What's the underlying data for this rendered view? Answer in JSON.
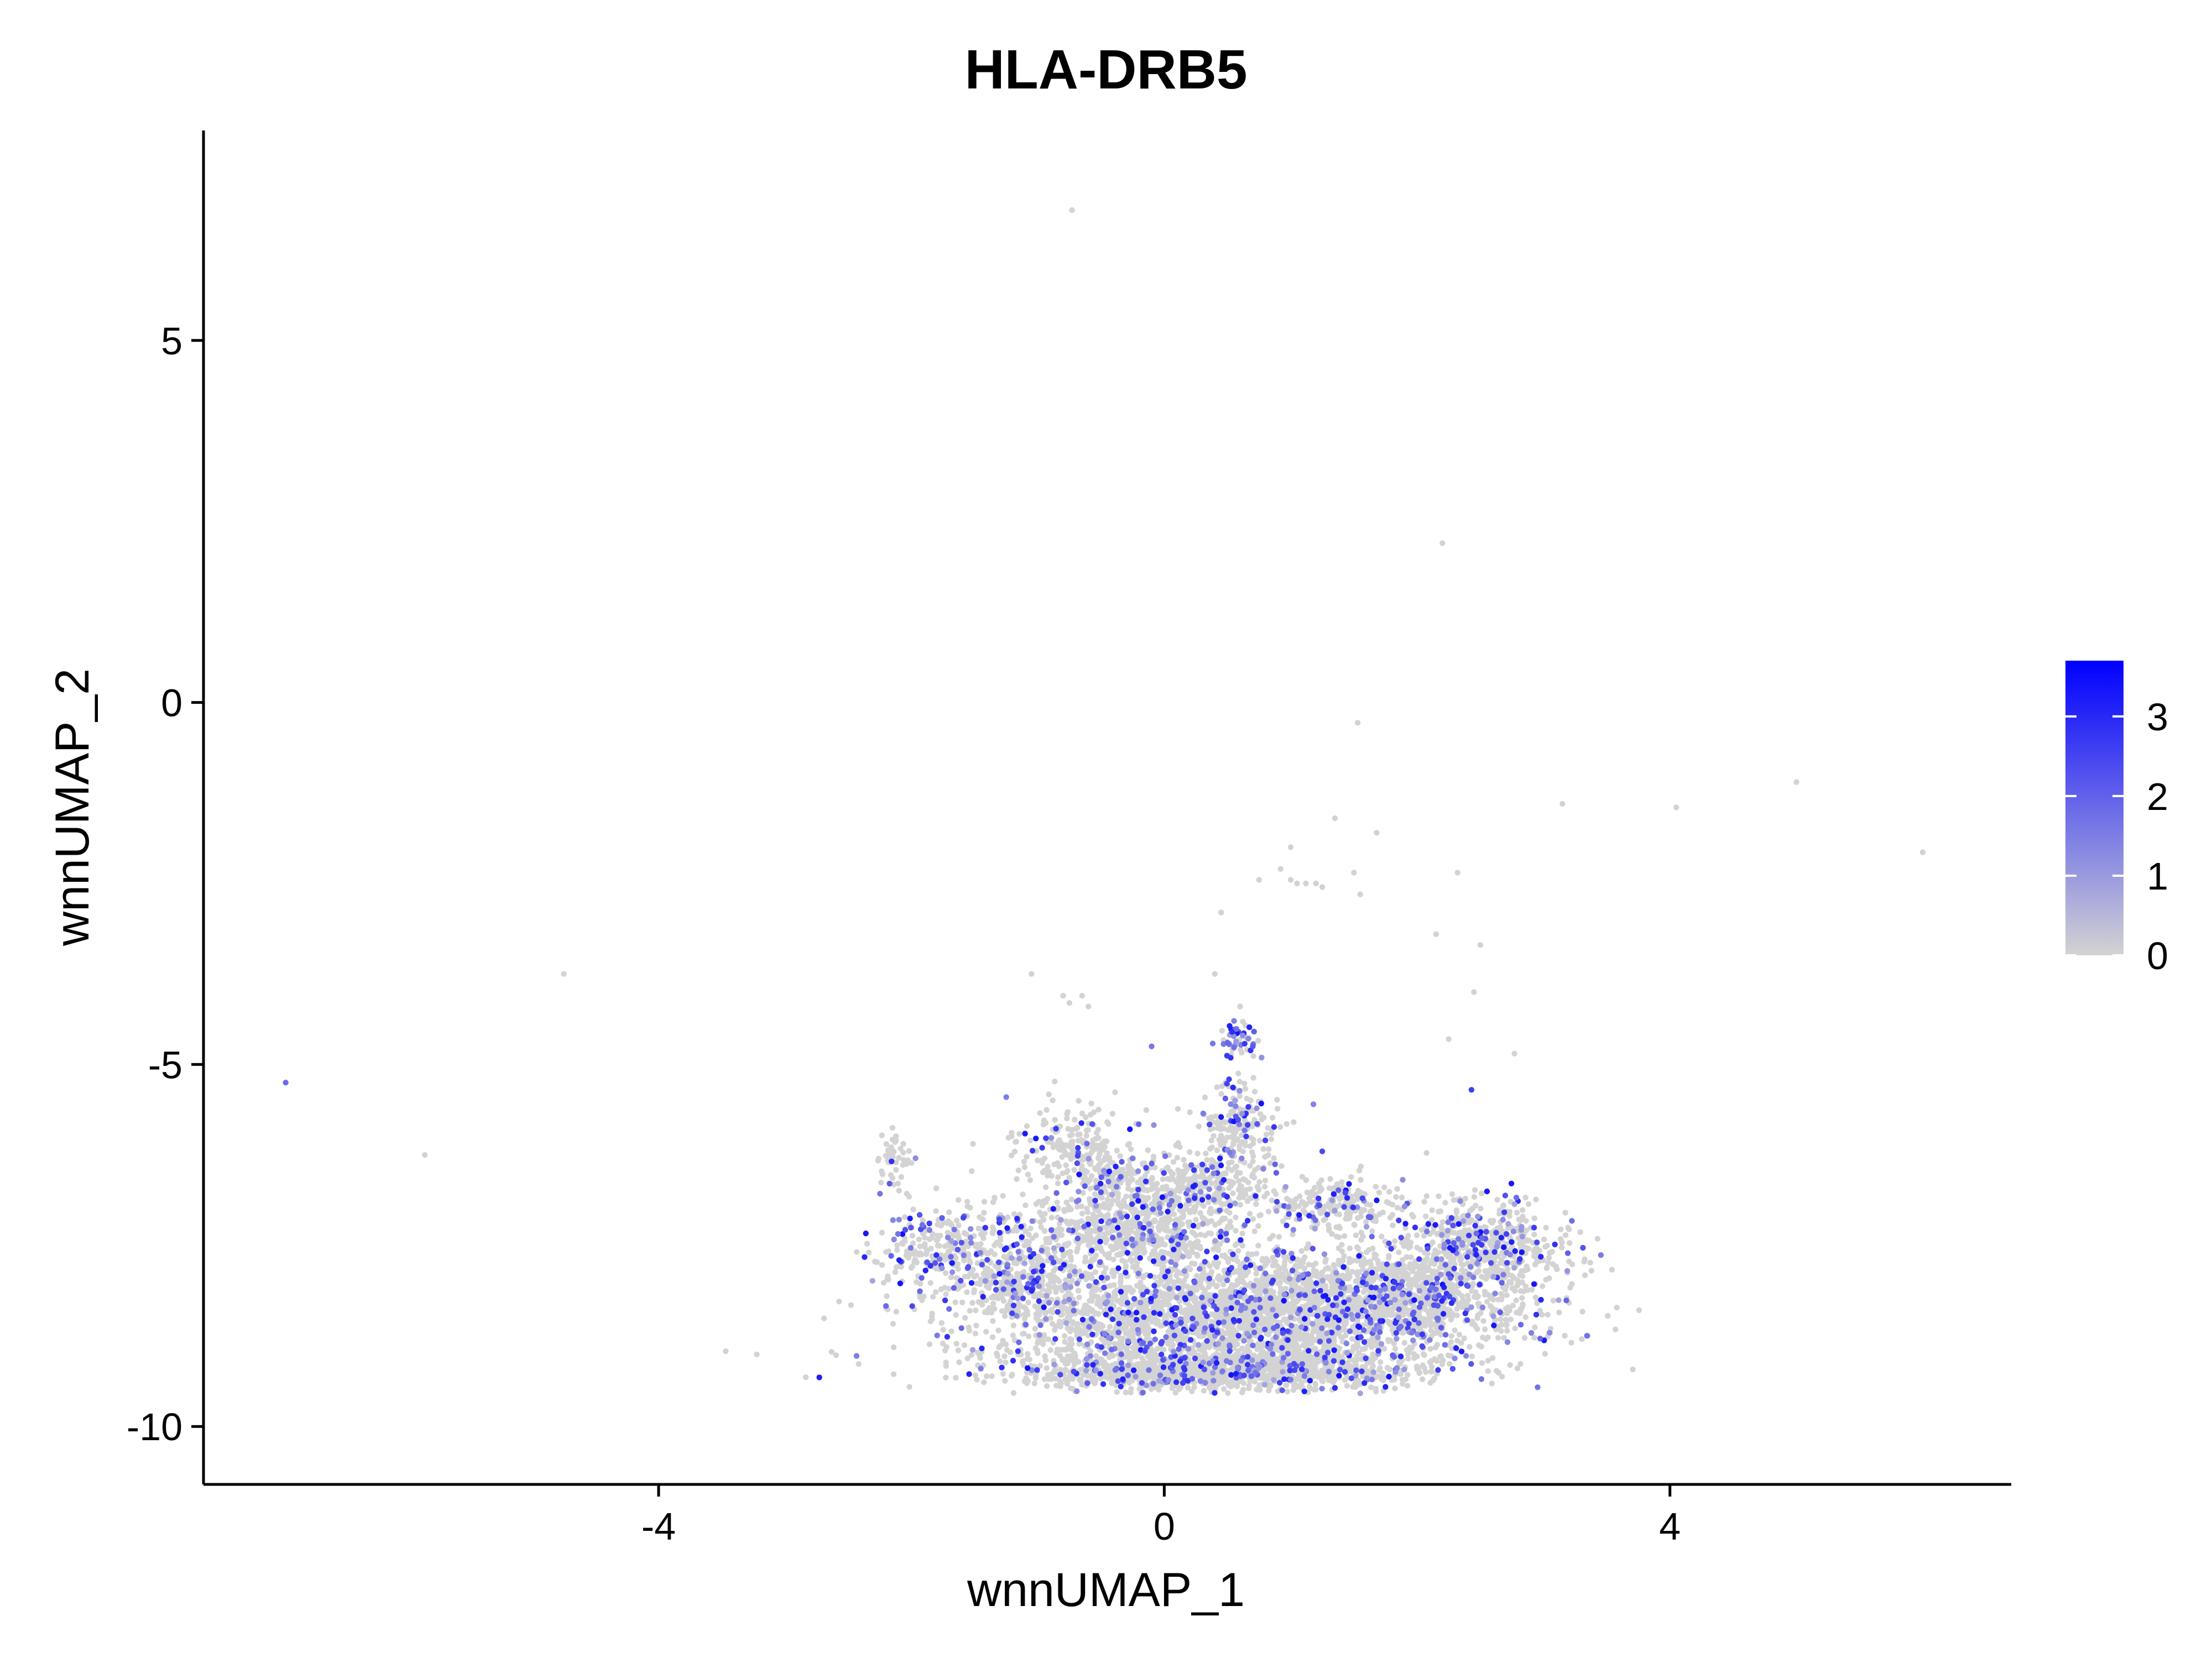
{
  "chart_data": {
    "type": "scatter",
    "title": "HLA-DRB5",
    "xlabel": "wnnUMAP_1",
    "ylabel": "wnnUMAP_2",
    "xlim": [
      -7.6,
      6.7
    ],
    "ylim": [
      -10.8,
      7.9
    ],
    "x_ticks": [
      {
        "value": -4,
        "label": "-4"
      },
      {
        "value": 0,
        "label": "0"
      },
      {
        "value": 4,
        "label": "4"
      }
    ],
    "y_ticks": [
      {
        "value": 5,
        "label": "5"
      },
      {
        "value": 0,
        "label": "0"
      },
      {
        "value": -5,
        "label": "-5"
      },
      {
        "value": -10,
        "label": "-10"
      }
    ],
    "grid": false,
    "color_scale": {
      "name": "",
      "low_color": "#d3d3d3",
      "high_color": "#0000ff",
      "min": 0,
      "max": 3.7,
      "ticks": [
        {
          "value": 0,
          "label": "0"
        },
        {
          "value": 1,
          "label": "1"
        },
        {
          "value": 2,
          "label": "2"
        },
        {
          "value": 3,
          "label": "3"
        }
      ],
      "legend_position": "right"
    },
    "points": [
      [
        -0.73,
        6.8,
        0
      ],
      [
        2.2,
        2.2,
        0
      ],
      [
        1.53,
        -0.28,
        0
      ],
      [
        5.0,
        -1.1,
        0
      ],
      [
        3.15,
        -1.4,
        0
      ],
      [
        4.05,
        -1.45,
        0
      ],
      [
        6.0,
        -2.07,
        0
      ],
      [
        1.35,
        -1.6,
        0
      ],
      [
        1.68,
        -1.8,
        0
      ],
      [
        1.0,
        -2.0,
        0
      ],
      [
        0.92,
        -2.3,
        0
      ],
      [
        1.5,
        -2.35,
        0
      ],
      [
        2.32,
        -2.35,
        0
      ],
      [
        0.75,
        -2.45,
        0
      ],
      [
        1.0,
        -2.45,
        0
      ],
      [
        1.05,
        -2.5,
        0
      ],
      [
        1.12,
        -2.5,
        0
      ],
      [
        1.2,
        -2.5,
        0
      ],
      [
        1.25,
        -2.55,
        0
      ],
      [
        1.55,
        -2.65,
        0
      ],
      [
        0.45,
        -2.9,
        0
      ],
      [
        2.15,
        -3.2,
        0
      ],
      [
        2.5,
        -3.35,
        0
      ],
      [
        -4.75,
        -3.75,
        0
      ],
      [
        -1.05,
        -3.75,
        0
      ],
      [
        0.4,
        -3.75,
        0
      ],
      [
        2.45,
        -4.0,
        0
      ],
      [
        -0.8,
        -4.05,
        0
      ],
      [
        -0.65,
        -4.05,
        0
      ],
      [
        -0.75,
        -4.15,
        0
      ],
      [
        -0.6,
        -4.2,
        0
      ],
      [
        0.6,
        -4.2,
        0
      ],
      [
        2.25,
        -4.65,
        0
      ],
      [
        2.77,
        -4.85,
        0
      ],
      [
        -6.95,
        -5.25,
        1.8
      ],
      [
        -5.85,
        -6.25,
        0
      ],
      [
        2.43,
        -5.35,
        2.6
      ],
      [
        -1.25,
        -5.45,
        1.5
      ],
      [
        -0.1,
        -4.75,
        1.6
      ],
      [
        0.62,
        -4.6,
        1.2
      ],
      [
        0.5,
        -4.7,
        1.9
      ],
      [
        0.7,
        -4.75,
        2.1
      ],
      [
        1.18,
        -5.55,
        1.4
      ],
      [
        1.25,
        -6.2,
        2.4
      ]
    ],
    "clusters": [
      {
        "cx": -1.7,
        "cy": -7.55,
        "rx": 0.55,
        "ry": 0.6,
        "n": 320,
        "blue_frac": 0.22
      },
      {
        "cx": -2.15,
        "cy": -6.3,
        "rx": 0.15,
        "ry": 0.35,
        "n": 45,
        "blue_frac": 0.05
      },
      {
        "cx": -0.7,
        "cy": -6.15,
        "rx": 0.45,
        "ry": 0.55,
        "n": 220,
        "blue_frac": 0.12
      },
      {
        "cx": 0.4,
        "cy": -8.55,
        "rx": 1.7,
        "ry": 0.85,
        "n": 2600,
        "blue_frac": 0.14
      },
      {
        "cx": 1.8,
        "cy": -8.2,
        "rx": 1.1,
        "ry": 0.7,
        "n": 1300,
        "blue_frac": 0.17
      },
      {
        "cx": 2.55,
        "cy": -7.45,
        "rx": 0.5,
        "ry": 0.45,
        "n": 420,
        "blue_frac": 0.16
      },
      {
        "cx": -0.3,
        "cy": -7.3,
        "rx": 0.8,
        "ry": 0.55,
        "n": 700,
        "blue_frac": 0.12
      },
      {
        "cx": 0.2,
        "cy": -6.7,
        "rx": 0.55,
        "ry": 0.45,
        "n": 320,
        "blue_frac": 0.1
      },
      {
        "cx": 0.6,
        "cy": -5.9,
        "rx": 0.3,
        "ry": 0.6,
        "n": 190,
        "blue_frac": 0.18
      },
      {
        "cx": 0.58,
        "cy": -4.65,
        "rx": 0.12,
        "ry": 0.22,
        "n": 45,
        "blue_frac": 0.55
      },
      {
        "cx": 1.4,
        "cy": -6.95,
        "rx": 0.75,
        "ry": 0.35,
        "n": 260,
        "blue_frac": 0.18
      },
      {
        "cx": -1.1,
        "cy": -8.0,
        "rx": 0.4,
        "ry": 0.45,
        "n": 260,
        "blue_frac": 0.14
      },
      {
        "cx": 0.0,
        "cy": -9.25,
        "rx": 1.0,
        "ry": 0.22,
        "n": 600,
        "blue_frac": 0.12
      },
      {
        "cx": 1.0,
        "cy": -9.2,
        "rx": 1.0,
        "ry": 0.25,
        "n": 500,
        "blue_frac": 0.12
      },
      {
        "cx": -0.4,
        "cy": -6.6,
        "rx": 0.3,
        "ry": 0.3,
        "n": 90,
        "blue_frac": 0.3
      }
    ]
  }
}
